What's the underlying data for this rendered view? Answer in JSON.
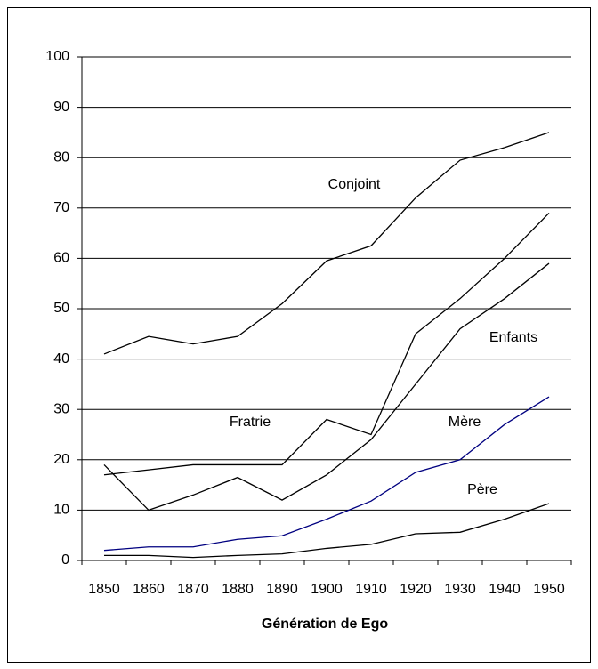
{
  "chart_data": {
    "type": "line",
    "x_label": "Génération de Ego",
    "categories": [
      "1850",
      "1860",
      "1870",
      "1880",
      "1890",
      "1900",
      "1910",
      "1920",
      "1930",
      "1940",
      "1950"
    ],
    "series": [
      {
        "name": "Conjoint",
        "color": "#000000",
        "values": [
          41,
          44.5,
          43,
          44.5,
          51,
          59.5,
          62.5,
          72,
          79.5,
          82,
          85
        ]
      },
      {
        "name": "Enfants",
        "color": "#000000",
        "values": [
          19,
          10,
          13,
          16.5,
          12,
          17,
          24,
          35,
          46,
          52,
          59
        ]
      },
      {
        "name": "Fratrie",
        "color": "#000000",
        "values": [
          17,
          18,
          19,
          19,
          19,
          28,
          25,
          45,
          52,
          60,
          69
        ]
      },
      {
        "name": "Mère",
        "color": "#000080",
        "values": [
          2,
          2.7,
          2.7,
          4.2,
          4.9,
          8.2,
          11.8,
          17.5,
          20,
          27,
          32.5
        ]
      },
      {
        "name": "Père",
        "color": "#000000",
        "values": [
          1,
          1,
          0.6,
          1,
          1.3,
          2.4,
          3.2,
          5.3,
          5.6,
          8.2,
          11.3
        ]
      }
    ],
    "ylim": [
      0,
      100
    ],
    "yticks": [
      0,
      10,
      20,
      30,
      40,
      50,
      60,
      70,
      80,
      90,
      100
    ],
    "grid": true
  }
}
